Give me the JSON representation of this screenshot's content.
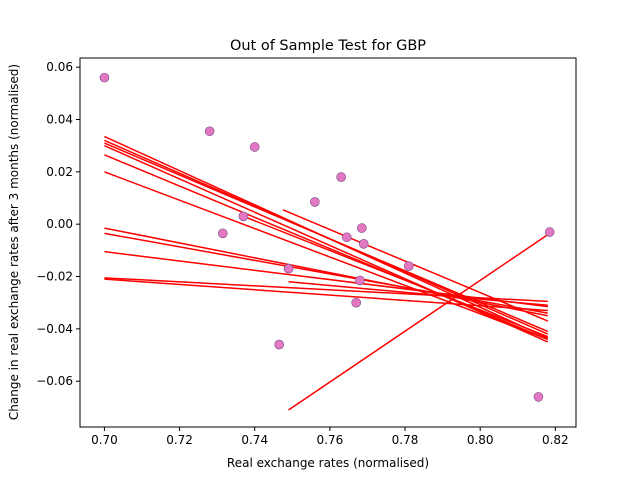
{
  "chart_data": {
    "type": "scatter",
    "title": "Out of Sample Test for GBP",
    "xlabel": "Real exchange rates (normalised)",
    "ylabel": "Change in real exchange rates after 3 months (normalised)",
    "xlim": [
      0.6935,
      0.8255
    ],
    "ylim": [
      -0.0775,
      0.0635
    ],
    "xticks": [
      0.7,
      0.72,
      0.74,
      0.76,
      0.78,
      0.8,
      0.82
    ],
    "xtick_labels": [
      "0.70",
      "0.72",
      "0.74",
      "0.76",
      "0.78",
      "0.80",
      "0.82"
    ],
    "yticks": [
      -0.06,
      -0.04,
      -0.02,
      0.0,
      0.02,
      0.04,
      0.06
    ],
    "ytick_labels": [
      "−0.06",
      "−0.04",
      "−0.02",
      "0.00",
      "0.02",
      "0.04",
      "0.06"
    ],
    "grid": false,
    "colors": {
      "points_fill": "#e377c2",
      "points_edge": "#7a4a8a",
      "lines": "#ff0000"
    },
    "points": [
      {
        "x": 0.7,
        "y": 0.056
      },
      {
        "x": 0.728,
        "y": 0.0355
      },
      {
        "x": 0.74,
        "y": 0.0295
      },
      {
        "x": 0.763,
        "y": 0.018
      },
      {
        "x": 0.756,
        "y": 0.0085
      },
      {
        "x": 0.737,
        "y": 0.003
      },
      {
        "x": 0.7315,
        "y": -0.0035
      },
      {
        "x": 0.7685,
        "y": -0.0015
      },
      {
        "x": 0.7645,
        "y": -0.005
      },
      {
        "x": 0.769,
        "y": -0.0075
      },
      {
        "x": 0.749,
        "y": -0.017
      },
      {
        "x": 0.781,
        "y": -0.016
      },
      {
        "x": 0.768,
        "y": -0.0215
      },
      {
        "x": 0.767,
        "y": -0.03
      },
      {
        "x": 0.7465,
        "y": -0.046
      },
      {
        "x": 0.8185,
        "y": -0.003
      },
      {
        "x": 0.8155,
        "y": -0.066
      }
    ],
    "fit_lines": [
      {
        "x": [
          0.7,
          0.818
        ],
        "y": [
          0.0335,
          -0.0435
        ]
      },
      {
        "x": [
          0.7,
          0.818
        ],
        "y": [
          0.032,
          -0.042
        ]
      },
      {
        "x": [
          0.7,
          0.818
        ],
        "y": [
          0.031,
          -0.041
        ]
      },
      {
        "x": [
          0.7,
          0.818
        ],
        "y": [
          0.03,
          -0.045
        ]
      },
      {
        "x": [
          0.7,
          0.818
        ],
        "y": [
          0.0265,
          -0.044
        ]
      },
      {
        "x": [
          0.7,
          0.818
        ],
        "y": [
          0.02,
          -0.044
        ]
      },
      {
        "x": [
          0.7,
          0.818
        ],
        "y": [
          -0.0015,
          -0.035
        ]
      },
      {
        "x": [
          0.7,
          0.818
        ],
        "y": [
          -0.0035,
          -0.034
        ]
      },
      {
        "x": [
          0.7,
          0.818
        ],
        "y": [
          -0.0105,
          -0.0315
        ]
      },
      {
        "x": [
          0.7,
          0.818
        ],
        "y": [
          -0.0205,
          -0.0295
        ]
      },
      {
        "x": [
          0.7,
          0.818
        ],
        "y": [
          -0.021,
          -0.033
        ]
      },
      {
        "x": [
          0.737,
          0.818
        ],
        "y": [
          0.003,
          -0.043
        ]
      },
      {
        "x": [
          0.7475,
          0.818
        ],
        "y": [
          0.0055,
          -0.037
        ]
      },
      {
        "x": [
          0.749,
          0.818
        ],
        "y": [
          -0.022,
          -0.031
        ]
      },
      {
        "x": [
          0.749,
          0.818
        ],
        "y": [
          -0.071,
          -0.004
        ]
      }
    ]
  }
}
